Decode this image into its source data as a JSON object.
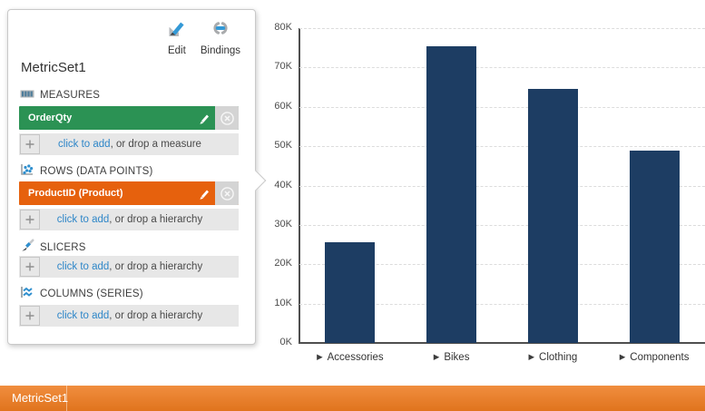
{
  "panel": {
    "title": "MetricSet1",
    "tools": {
      "edit": "Edit",
      "bindings": "Bindings"
    },
    "sections": {
      "measures": {
        "header": "MEASURES",
        "chip": "OrderQty",
        "add_link": "click to add",
        "add_rest": ", or drop a measure"
      },
      "rows": {
        "header": "ROWS (DATA POINTS)",
        "chip": "ProductID (Product)",
        "add_link": "click to add",
        "add_rest": ", or drop a hierarchy"
      },
      "slicers": {
        "header": "SLICERS",
        "add_link": "click to add",
        "add_rest": ", or drop a hierarchy"
      },
      "columns": {
        "header": "COLUMNS (SERIES)",
        "add_link": "click to add",
        "add_rest": ", or drop a hierarchy"
      }
    }
  },
  "chart_data": {
    "type": "bar",
    "categories": [
      "Accessories",
      "Bikes",
      "Clothing",
      "Components"
    ],
    "values": [
      25500,
      75300,
      64500,
      48800
    ],
    "series_name": "OrderQty",
    "title": "",
    "xlabel": "",
    "ylabel": "",
    "ylim": [
      0,
      80000
    ],
    "ytick_step": 10000,
    "ytick_labels": [
      "0K",
      "10K",
      "20K",
      "30K",
      "40K",
      "50K",
      "60K",
      "70K",
      "80K"
    ],
    "grid": "horizontal-dashed",
    "legend": "none",
    "category_marker": "▶"
  },
  "footer": {
    "label": "MetricSet1"
  },
  "colors": {
    "measure_chip": "#2b9254",
    "hierarchy_chip": "#e6610d",
    "footer_bar": "#ee7b1f",
    "link": "#2e86c8",
    "icon_blue": "#3399d6",
    "bar": "#1d3d63"
  }
}
